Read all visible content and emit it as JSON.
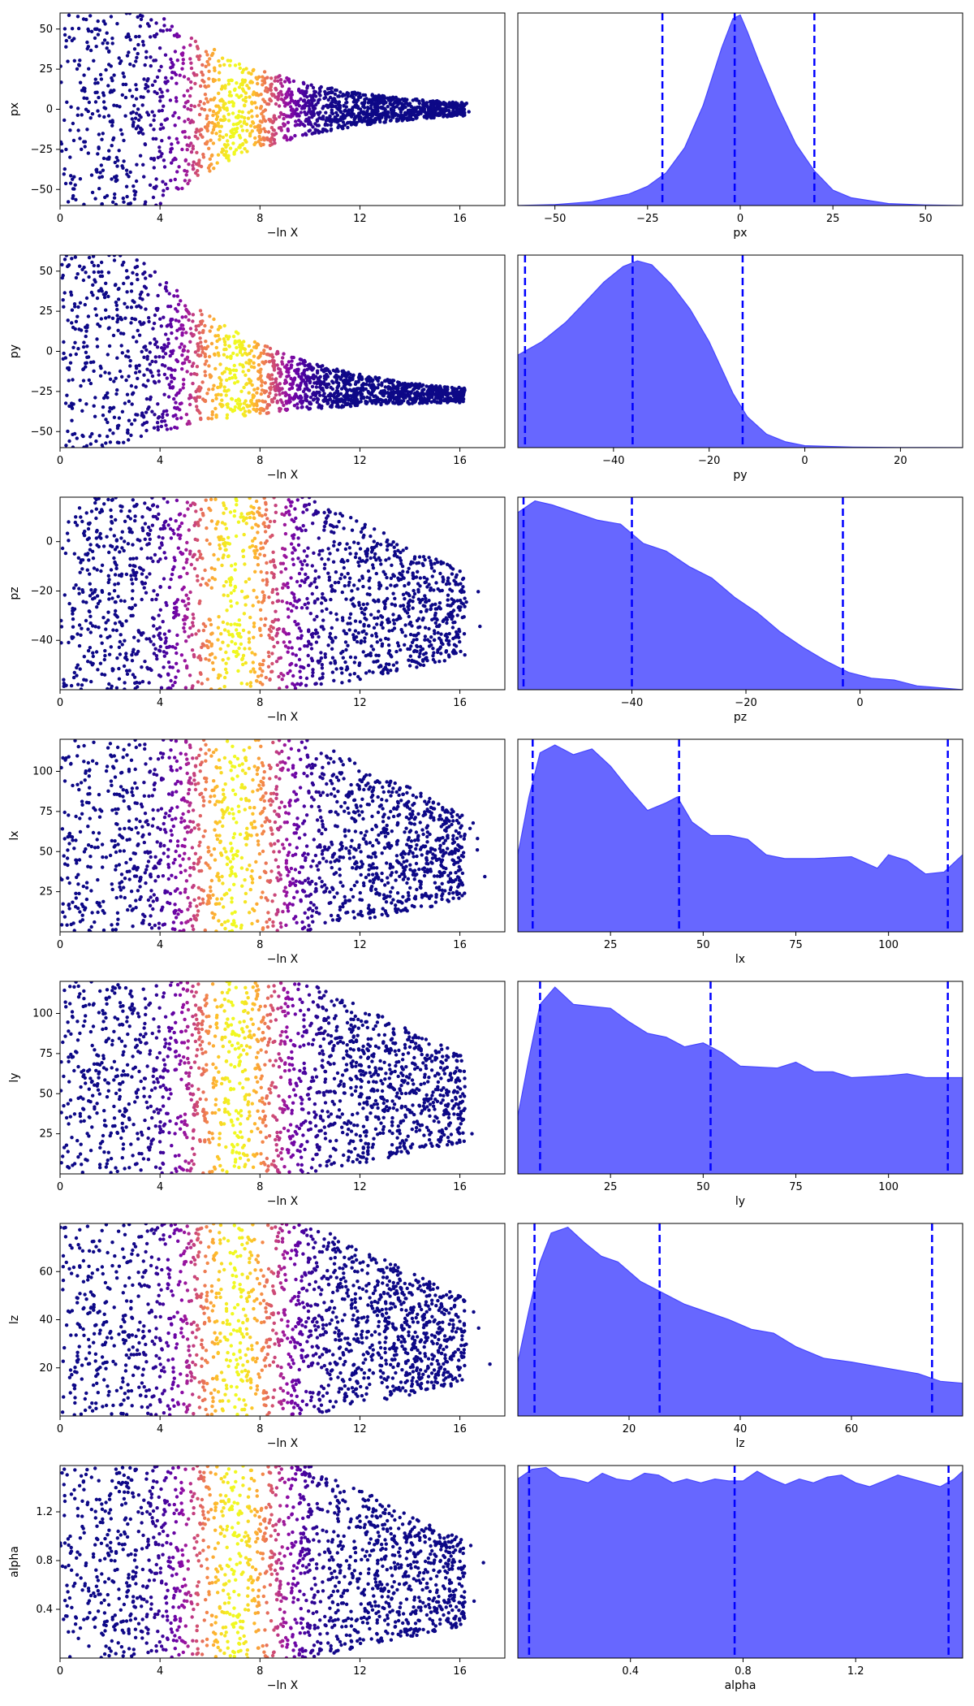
{
  "colors": {
    "trace_low": "#0d0887",
    "trace_mid": "#cc4778",
    "trace_high": "#f0f921",
    "posterior_fill": "#6464ff",
    "posterior_line": "#4646ff",
    "quantile_line": "#0000ff"
  },
  "chart_data": [
    {
      "type": "scatter",
      "ylabel": "px",
      "xlabel": "−ln X",
      "xlim": [
        0,
        17.8
      ],
      "ylim": [
        -60,
        60
      ],
      "xticks": [
        0,
        4,
        8,
        12,
        16
      ],
      "yticks": [
        -50,
        -25,
        0,
        25,
        50
      ],
      "colormap": "plasma",
      "color_peak_x": 7.0
    },
    {
      "type": "area",
      "xlabel": "px",
      "xlim": [
        -60,
        60
      ],
      "xticks": [
        -50,
        -25,
        0,
        25,
        50
      ],
      "x": [
        -60,
        -50,
        -40,
        -30,
        -25,
        -20,
        -15,
        -10,
        -5,
        -2,
        0,
        2,
        5,
        10,
        15,
        20,
        25,
        30,
        40,
        50,
        60
      ],
      "y": [
        0.0,
        0.005,
        0.02,
        0.06,
        0.1,
        0.17,
        0.3,
        0.52,
        0.82,
        0.97,
        0.99,
        0.9,
        0.75,
        0.52,
        0.32,
        0.18,
        0.08,
        0.04,
        0.01,
        0.003,
        0.0
      ],
      "quantiles": [
        -21,
        -1.5,
        20
      ]
    },
    {
      "type": "scatter",
      "ylabel": "py",
      "xlabel": "−ln X",
      "xlim": [
        0,
        17.8
      ],
      "ylim": [
        -60,
        60
      ],
      "xticks": [
        0,
        4,
        8,
        12,
        16
      ],
      "yticks": [
        -50,
        -25,
        0,
        25,
        50
      ],
      "colormap": "plasma",
      "color_peak_x": 7.0
    },
    {
      "type": "area",
      "xlabel": "py",
      "xlim": [
        -60,
        33
      ],
      "xticks": [
        -40,
        -20,
        0,
        20
      ],
      "x": [
        -60,
        -55,
        -50,
        -45,
        -42,
        -38,
        -35,
        -32,
        -28,
        -24,
        -20,
        -15,
        -12,
        -8,
        -4,
        0,
        10,
        20,
        33
      ],
      "y": [
        0.48,
        0.55,
        0.65,
        0.78,
        0.86,
        0.94,
        0.97,
        0.95,
        0.85,
        0.72,
        0.55,
        0.28,
        0.16,
        0.07,
        0.03,
        0.01,
        0.003,
        0.001,
        0.0
      ],
      "quantiles": [
        -58.5,
        -36,
        -13
      ]
    },
    {
      "type": "scatter",
      "ylabel": "pz",
      "xlabel": "−ln X",
      "xlim": [
        0,
        17.8
      ],
      "ylim": [
        -60,
        18
      ],
      "xticks": [
        0,
        4,
        8,
        12,
        16
      ],
      "yticks": [
        -40,
        -20,
        0
      ],
      "colormap": "plasma",
      "color_peak_x": 7.0
    },
    {
      "type": "area",
      "xlabel": "pz",
      "xlim": [
        -60,
        18
      ],
      "xticks": [
        -40,
        -20,
        0
      ],
      "x": [
        -60,
        -57,
        -54,
        -50,
        -46,
        -42,
        -38,
        -34,
        -30,
        -26,
        -22,
        -18,
        -14,
        -10,
        -6,
        -2,
        2,
        6,
        10,
        18
      ],
      "y": [
        0.92,
        0.98,
        0.96,
        0.92,
        0.88,
        0.86,
        0.76,
        0.72,
        0.64,
        0.58,
        0.48,
        0.4,
        0.3,
        0.22,
        0.15,
        0.09,
        0.06,
        0.05,
        0.02,
        0.0
      ],
      "quantiles": [
        -59,
        -40,
        -3
      ]
    },
    {
      "type": "scatter",
      "ylabel": "lx",
      "xlabel": "−ln X",
      "xlim": [
        0,
        17.8
      ],
      "ylim": [
        0,
        120
      ],
      "xticks": [
        0,
        4,
        8,
        12,
        16
      ],
      "yticks": [
        25,
        50,
        75,
        100
      ],
      "colormap": "plasma",
      "color_peak_x": 7.0
    },
    {
      "type": "area",
      "xlabel": "lx",
      "xlim": [
        0,
        120
      ],
      "xticks": [
        25,
        50,
        75,
        100
      ],
      "x": [
        0,
        3,
        6,
        10,
        15,
        20,
        25,
        30,
        35,
        40,
        43,
        47,
        52,
        57,
        62,
        67,
        72,
        80,
        90,
        97,
        100,
        105,
        110,
        115,
        120
      ],
      "y": [
        0.4,
        0.7,
        0.93,
        0.97,
        0.92,
        0.95,
        0.86,
        0.74,
        0.63,
        0.67,
        0.7,
        0.57,
        0.5,
        0.5,
        0.48,
        0.4,
        0.38,
        0.38,
        0.39,
        0.33,
        0.4,
        0.37,
        0.3,
        0.31,
        0.4
      ],
      "quantiles": [
        4,
        43.5,
        116
      ]
    },
    {
      "type": "scatter",
      "ylabel": "ly",
      "xlabel": "−ln X",
      "xlim": [
        0,
        17.8
      ],
      "ylim": [
        0,
        120
      ],
      "xticks": [
        0,
        4,
        8,
        12,
        16
      ],
      "yticks": [
        25,
        50,
        75,
        100
      ],
      "colormap": "plasma",
      "color_peak_x": 7.0
    },
    {
      "type": "area",
      "xlabel": "ly",
      "xlim": [
        0,
        120
      ],
      "xticks": [
        25,
        50,
        75,
        100
      ],
      "x": [
        0,
        3,
        6,
        10,
        15,
        20,
        25,
        30,
        35,
        40,
        45,
        50,
        55,
        60,
        70,
        75,
        80,
        85,
        90,
        100,
        105,
        110,
        115,
        120
      ],
      "y": [
        0.3,
        0.6,
        0.88,
        0.97,
        0.88,
        0.87,
        0.86,
        0.79,
        0.73,
        0.71,
        0.66,
        0.68,
        0.63,
        0.56,
        0.55,
        0.58,
        0.53,
        0.53,
        0.5,
        0.51,
        0.52,
        0.5,
        0.5,
        0.5
      ],
      "quantiles": [
        6,
        52,
        116
      ]
    },
    {
      "type": "scatter",
      "ylabel": "lz",
      "xlabel": "−ln X",
      "xlim": [
        0,
        17.8
      ],
      "ylim": [
        0,
        80
      ],
      "xticks": [
        0,
        4,
        8,
        12,
        16
      ],
      "yticks": [
        20,
        40,
        60
      ],
      "colormap": "plasma",
      "color_peak_x": 7.0
    },
    {
      "type": "area",
      "xlabel": "lz",
      "xlim": [
        0,
        80
      ],
      "xticks": [
        20,
        40,
        60
      ],
      "x": [
        0,
        2,
        4,
        6,
        9,
        12,
        15,
        18,
        22,
        26,
        30,
        34,
        38,
        42,
        46,
        50,
        55,
        60,
        66,
        72,
        76,
        80
      ],
      "y": [
        0.28,
        0.55,
        0.8,
        0.95,
        0.98,
        0.9,
        0.83,
        0.8,
        0.7,
        0.64,
        0.58,
        0.54,
        0.5,
        0.45,
        0.43,
        0.36,
        0.3,
        0.28,
        0.25,
        0.22,
        0.18,
        0.17
      ],
      "quantiles": [
        3,
        25.5,
        74.5
      ]
    },
    {
      "type": "scatter",
      "ylabel": "alpha",
      "xlabel": "−ln X",
      "xlim": [
        0,
        17.8
      ],
      "ylim": [
        0,
        1.58
      ],
      "xticks": [
        0,
        4,
        8,
        12,
        16
      ],
      "yticks": [
        0.4,
        0.8,
        1.2
      ],
      "colormap": "plasma",
      "color_peak_x": 7.0
    },
    {
      "type": "area",
      "xlabel": "alpha",
      "xlim": [
        0,
        1.58
      ],
      "xticks": [
        0.4,
        0.8,
        1.2
      ],
      "x": [
        0,
        0.05,
        0.1,
        0.15,
        0.2,
        0.25,
        0.3,
        0.35,
        0.4,
        0.45,
        0.5,
        0.55,
        0.6,
        0.65,
        0.7,
        0.75,
        0.8,
        0.85,
        0.9,
        0.95,
        1.0,
        1.05,
        1.1,
        1.15,
        1.2,
        1.25,
        1.3,
        1.35,
        1.4,
        1.45,
        1.5,
        1.55,
        1.58
      ],
      "y": [
        0.93,
        0.98,
        0.99,
        0.94,
        0.93,
        0.91,
        0.96,
        0.93,
        0.92,
        0.96,
        0.95,
        0.91,
        0.93,
        0.91,
        0.93,
        0.92,
        0.92,
        0.97,
        0.93,
        0.9,
        0.93,
        0.91,
        0.94,
        0.95,
        0.91,
        0.89,
        0.92,
        0.95,
        0.93,
        0.91,
        0.89,
        0.93,
        0.97
      ],
      "quantiles": [
        0.04,
        0.77,
        1.53
      ]
    }
  ]
}
